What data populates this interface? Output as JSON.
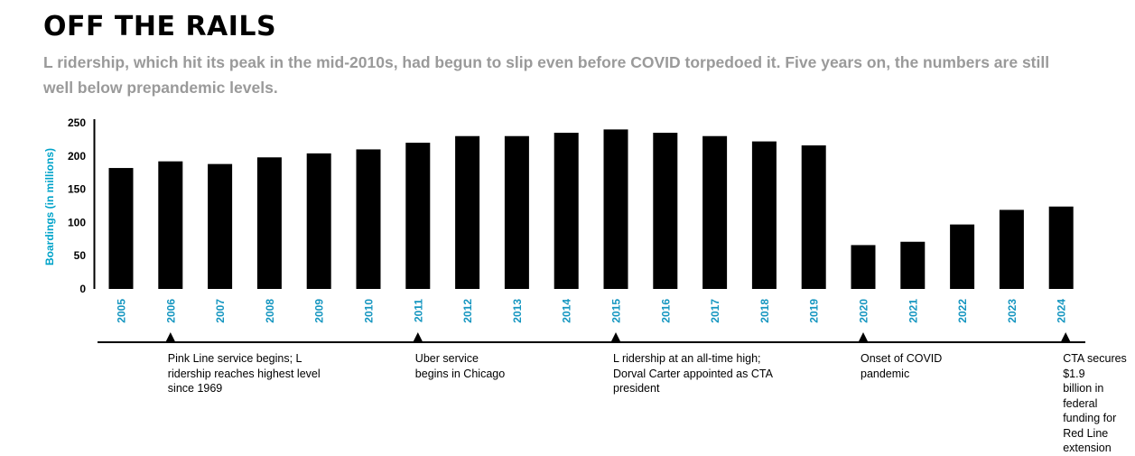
{
  "header": {
    "title": "OFF THE RAILS",
    "subtitle": "L ridership, which hit its peak in the mid-2010s, had begun to slip even before COVID torpedoed it. Five years on, the numbers are still well below prepandemic levels."
  },
  "chart_data": {
    "type": "bar",
    "categories": [
      "2005",
      "2006",
      "2007",
      "2008",
      "2009",
      "2010",
      "2011",
      "2012",
      "2013",
      "2014",
      "2015",
      "2016",
      "2017",
      "2018",
      "2019",
      "2020",
      "2021",
      "2022",
      "2023",
      "2024"
    ],
    "values": [
      182,
      192,
      188,
      198,
      204,
      210,
      220,
      230,
      230,
      235,
      240,
      235,
      230,
      222,
      216,
      66,
      71,
      97,
      119,
      124
    ],
    "ylabel": "Boardings (in millions)",
    "ylim": [
      0,
      250
    ],
    "yticks": [
      0,
      50,
      100,
      150,
      200,
      250
    ],
    "grid": false,
    "bar_color": "#000000",
    "label_color": "#00a3c9"
  },
  "timeline": {
    "events": [
      {
        "year": "2006",
        "text": "Pink Line service begins; L\nridership reaches highest level\nsince 1969"
      },
      {
        "year": "2011",
        "text": "Uber service\nbegins in Chicago"
      },
      {
        "year": "2015",
        "text": "L ridership at an all-time high;\nDorval Carter appointed as CTA\npresident"
      },
      {
        "year": "2020",
        "text": "Onset of COVID\npandemic"
      },
      {
        "year": "2024",
        "text": "CTA secures $1.9\nbillion in federal\nfunding for Red Line\nextension"
      }
    ]
  }
}
